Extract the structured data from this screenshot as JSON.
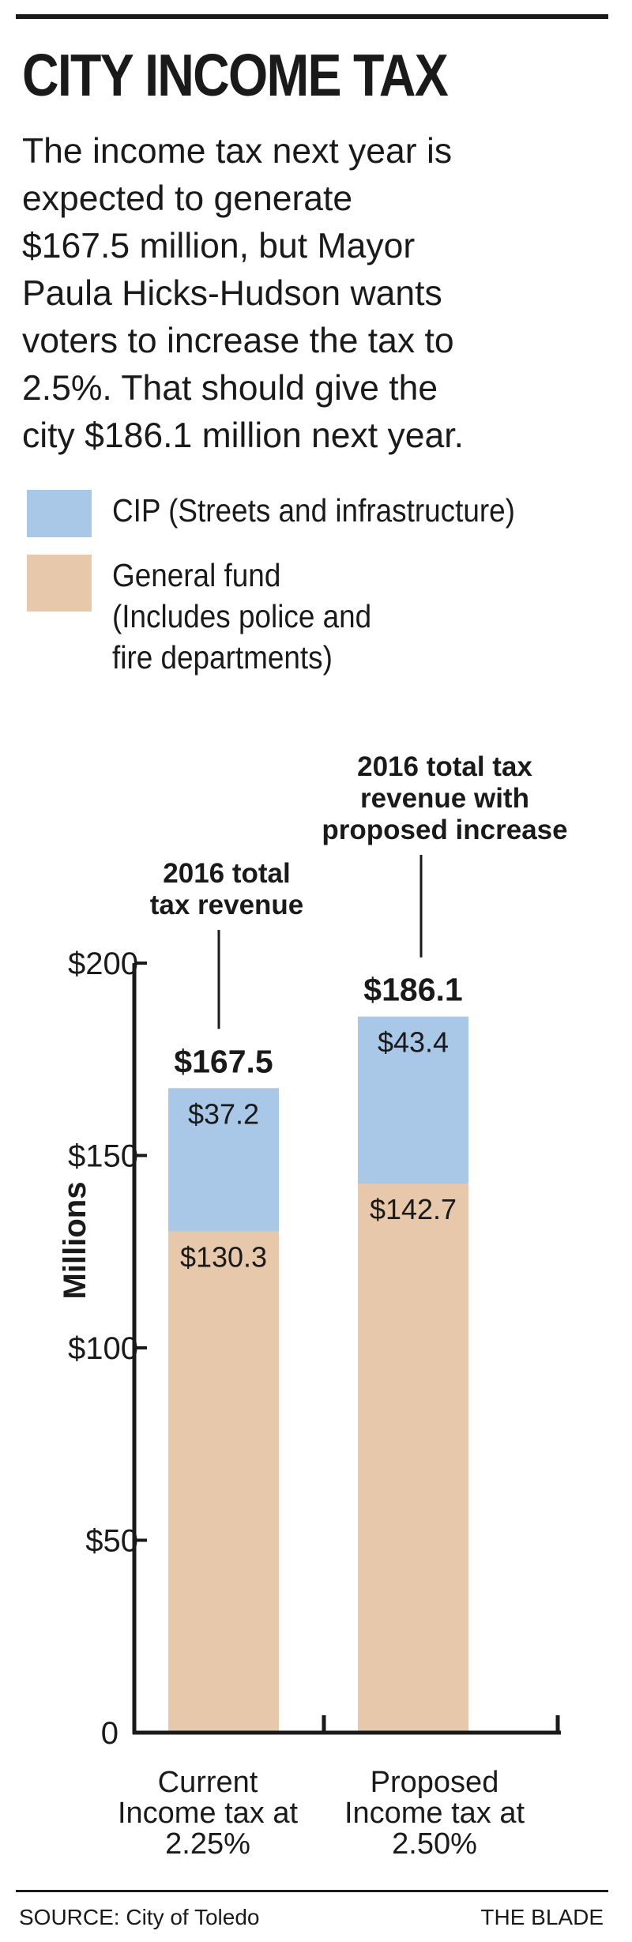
{
  "header": {
    "title": "CITY INCOME TAX",
    "intro_lines": [
      "The income tax next year is",
      "expected to generate",
      "$167.5 million, but Mayor",
      "Paula Hicks-Hudson wants",
      "voters to increase the tax to",
      "2.5%. That should give the",
      "city $186.1 million next year."
    ]
  },
  "legend": {
    "cip_label": "CIP (Streets and infrastructure)",
    "general_label_lines": [
      "General fund",
      "(Includes police and",
      "fire departments)"
    ]
  },
  "colors": {
    "cip": "#a9c7e6",
    "general_fund": "#e7c8ab",
    "axis": "#1a1a1a"
  },
  "chart_data": {
    "type": "bar",
    "stacked": true,
    "categories": [
      [
        "Current",
        "Income tax at",
        "2.25%"
      ],
      [
        "Proposed",
        "Income tax at",
        "2.50%"
      ]
    ],
    "series": [
      {
        "name": "General fund (Includes police and fire departments)",
        "values": [
          130.3,
          142.7
        ],
        "labels": [
          "$130.3",
          "$142.7"
        ],
        "color": "#e7c8ab"
      },
      {
        "name": "CIP (Streets and infrastructure)",
        "values": [
          37.2,
          43.4
        ],
        "labels": [
          "$37.2",
          "$43.4"
        ],
        "color": "#a9c7e6"
      }
    ],
    "totals": [
      167.5,
      186.1
    ],
    "total_labels": [
      "$167.5",
      "$186.1"
    ],
    "annotations": [
      [
        "2016 total",
        "tax revenue"
      ],
      [
        "2016 total tax",
        "revenue with",
        "proposed increase"
      ]
    ],
    "ylabel": "Millions",
    "yticks": [
      0,
      50,
      100,
      150,
      200
    ],
    "ytick_labels": [
      "0",
      "$50",
      "$100",
      "$150",
      "$200"
    ],
    "ylim": [
      0,
      200
    ],
    "grid": false,
    "legend_position": "top"
  },
  "footer": {
    "source": "SOURCE: City of Toledo",
    "credit": "THE BLADE"
  }
}
